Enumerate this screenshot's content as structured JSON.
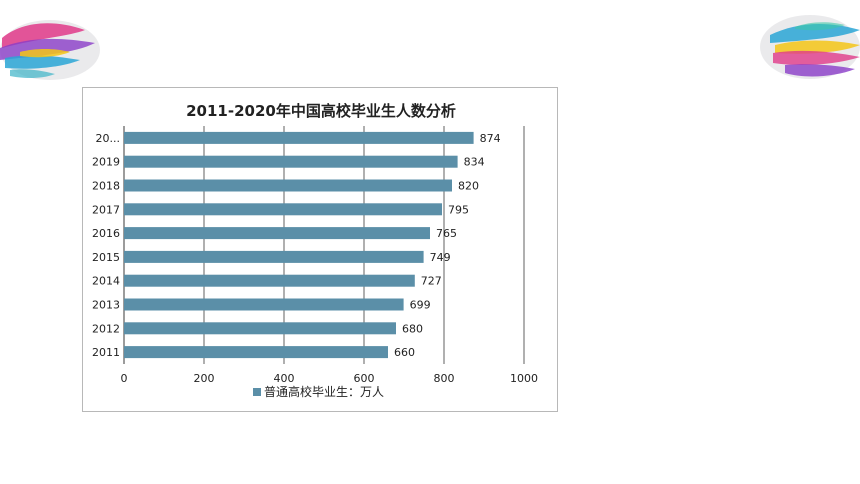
{
  "chart_data": {
    "type": "bar",
    "orientation": "horizontal",
    "title": "2011-2020年中国高校毕业生人数分析",
    "categories": [
      "20...",
      "2019",
      "2018",
      "2017",
      "2016",
      "2015",
      "2014",
      "2013",
      "2012",
      "2011"
    ],
    "series": [
      {
        "name": "普通高校毕业生：万人",
        "color": "#5b8fa8",
        "values": [
          874,
          834,
          820,
          795,
          765,
          749,
          727,
          699,
          680,
          660
        ]
      }
    ],
    "xticks": [
      "0",
      "200",
      "400",
      "600",
      "800",
      "1000"
    ],
    "xlim": [
      0,
      1000
    ],
    "grid": true,
    "legend": "bottom"
  }
}
